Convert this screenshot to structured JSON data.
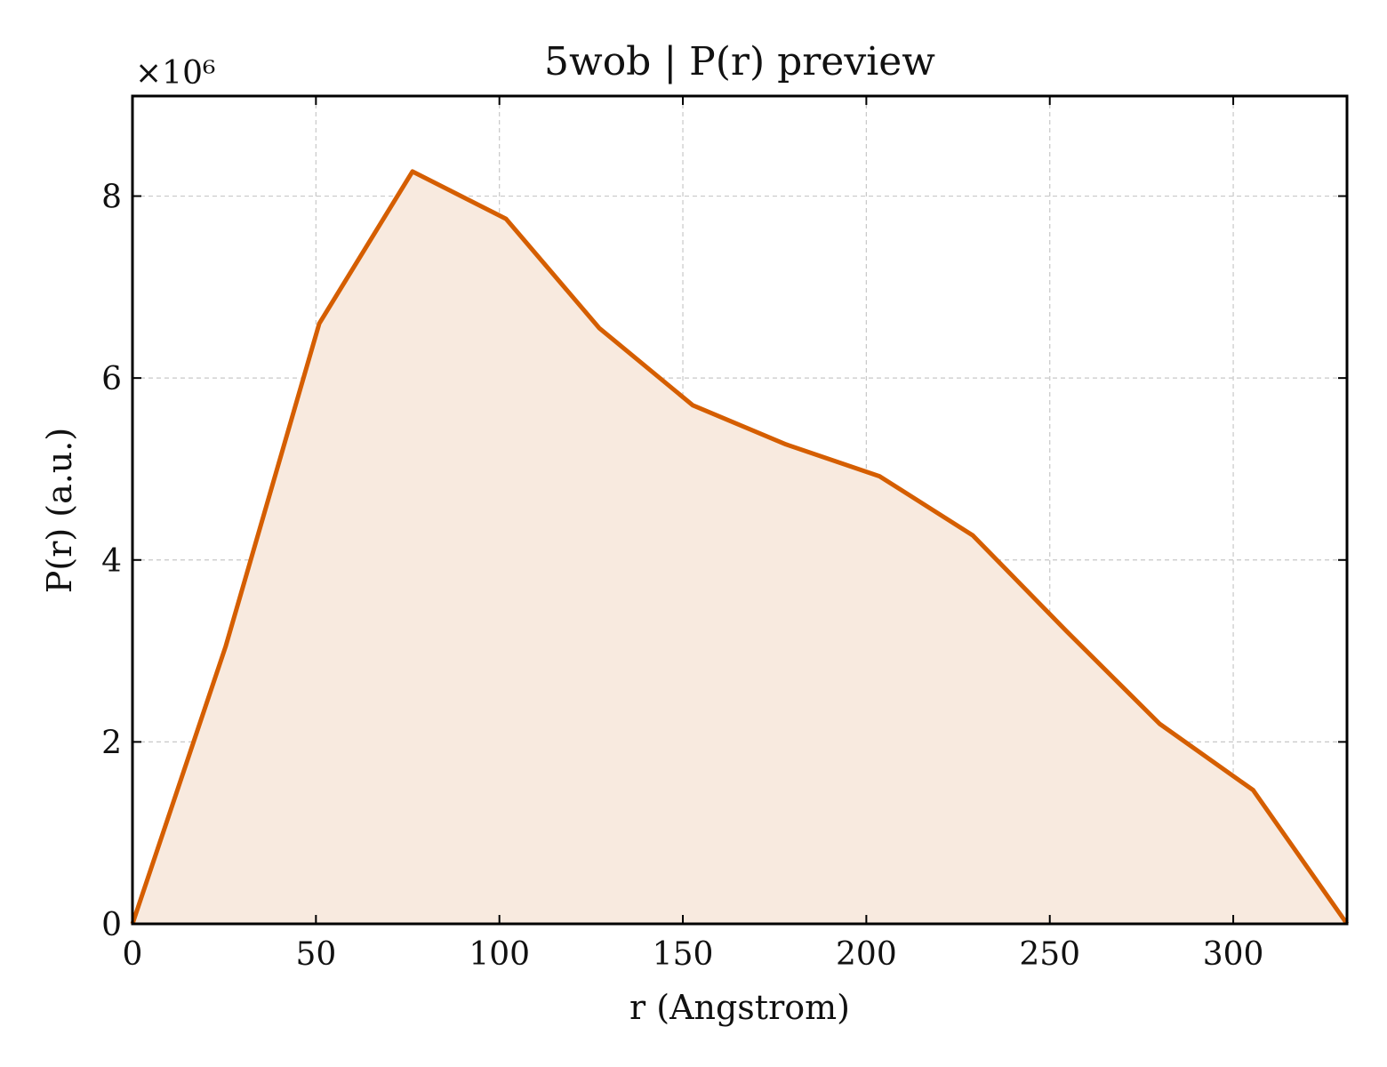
{
  "chart_data": {
    "type": "area",
    "title": "5wob | P(r) preview",
    "xlabel": "r (Angstrom)",
    "ylabel": "P(r) (a.u.)",
    "y_multiplier_label": "×10⁶",
    "xlim": [
      0,
      331
    ],
    "ylim": [
      0,
      9.1
    ],
    "x_ticks": [
      0,
      50,
      100,
      150,
      200,
      250,
      300
    ],
    "y_ticks": [
      0,
      2,
      4,
      6,
      8
    ],
    "grid": true,
    "series": [
      {
        "color": "#d55e00",
        "fill_color": "#f8eadf",
        "x": [
          0,
          25.4,
          50.9,
          76.3,
          101.8,
          127.2,
          152.7,
          178.1,
          203.6,
          229.0,
          254.5,
          279.9,
          305.4,
          331.0
        ],
        "y": [
          0,
          3.05,
          6.6,
          8.27,
          7.75,
          6.55,
          5.7,
          5.27,
          4.92,
          4.27,
          3.22,
          2.2,
          1.47,
          0
        ]
      }
    ]
  }
}
